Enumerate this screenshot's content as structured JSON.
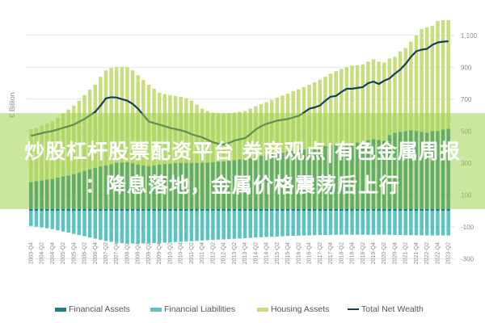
{
  "banner": {
    "line1": "炒股杠杆股票配资平台 券商观点|有色金属周报",
    "line2": "：降息落地，金属价格震荡后上行"
  },
  "chart_data": {
    "type": "bar",
    "stacked": true,
    "ylabel": "€ Billion",
    "ylim": [
      -300,
      1200
    ],
    "yticks": [
      1100,
      900,
      700,
      500,
      300,
      100,
      -100,
      -300
    ],
    "ytick_labels": [
      "1,100",
      "900",
      "700",
      "500",
      "300",
      "100",
      "-100",
      "-300"
    ],
    "y_axis_position": "right",
    "grid": true,
    "legend_position": "bottom",
    "colors": {
      "financial_assets": "#1b7e8f",
      "financial_liabilities": "#5cc3c2",
      "housing_assets": "#c8dd7d",
      "total_net_wealth": "#133f5e"
    },
    "x_labels": [
      "2003-Q4",
      "2004-Q2",
      "2004-Q4",
      "2005-Q2",
      "2005-Q4",
      "2006-Q2",
      "2006-Q4",
      "2007-Q2",
      "2007-Q4",
      "2008-Q2",
      "2008-Q4",
      "2009-Q2",
      "2009-Q4",
      "2010-Q2",
      "2010-Q4",
      "2011-Q2",
      "2011-Q4",
      "2012-Q2",
      "2012-Q4",
      "2013-Q2",
      "2013-Q4",
      "2014-Q2",
      "2014-Q4",
      "2015-Q2",
      "2015-Q4",
      "2016-Q2",
      "2016-Q4",
      "2017-Q2",
      "2017-Q4",
      "2018-Q2",
      "2018-Q4",
      "2019-Q2",
      "2019-Q4",
      "2020-Q2",
      "2020-Q4",
      "2021-Q2",
      "2021-Q4",
      "2022-Q2",
      "2022-Q4",
      "2023-Q2"
    ],
    "x_start": "2003-Q4",
    "x_end": "2023-Q2",
    "frequency": "quarterly",
    "series": [
      {
        "name": "Financial Assets",
        "kind": "bar",
        "values": [
          180,
          185,
          190,
          195,
          200,
          208,
          215,
          222,
          230,
          240,
          250,
          260,
          270,
          278,
          285,
          292,
          300,
          303,
          305,
          298,
          290,
          285,
          280,
          285,
          290,
          293,
          295,
          298,
          300,
          300,
          300,
          300,
          300,
          302,
          305,
          308,
          310,
          314,
          318,
          322,
          325,
          331,
          337,
          344,
          350,
          355,
          360,
          365,
          370,
          375,
          380,
          385,
          390,
          395,
          400,
          405,
          410,
          412,
          415,
          418,
          420,
          428,
          435,
          443,
          450,
          445,
          440,
          475,
          490,
          495,
          500,
          505,
          500,
          495,
          490,
          500,
          500,
          510,
          515
        ]
      },
      {
        "name": "Financial Liabilities",
        "kind": "bar",
        "values": [
          -95,
          -100,
          -105,
          -110,
          -115,
          -122,
          -130,
          -137,
          -145,
          -152,
          -160,
          -168,
          -175,
          -182,
          -190,
          -195,
          -200,
          -203,
          -205,
          -205,
          -205,
          -205,
          -204,
          -203,
          -202,
          -200,
          -198,
          -196,
          -195,
          -193,
          -191,
          -189,
          -187,
          -185,
          -183,
          -181,
          -180,
          -178,
          -176,
          -174,
          -172,
          -170,
          -168,
          -166,
          -165,
          -163,
          -162,
          -160,
          -158,
          -157,
          -156,
          -155,
          -154,
          -153,
          -152,
          -152,
          -151,
          -151,
          -150,
          -150,
          -150,
          -150,
          -150,
          -151,
          -151,
          -150,
          -150,
          -151,
          -152,
          -152,
          -153,
          -153,
          -154,
          -154,
          -155,
          -155,
          -155,
          -155,
          -155
        ]
      },
      {
        "name": "Housing Assets",
        "kind": "bar",
        "values": [
          330,
          335,
          345,
          353,
          360,
          377,
          395,
          413,
          430,
          450,
          475,
          500,
          520,
          562,
          595,
          603,
          600,
          599,
          595,
          582,
          560,
          535,
          510,
          480,
          450,
          439,
          430,
          422,
          415,
          405,
          390,
          365,
          340,
          323,
          310,
          304,
          300,
          298,
          297,
          298,
          300,
          309,
          318,
          324,
          330,
          340,
          350,
          357,
          365,
          375,
          382,
          390,
          400,
          410,
          422,
          435,
          450,
          463,
          475,
          482,
          490,
          484,
          483,
          492,
          500,
          490,
          490,
          480,
          475,
          505,
          520,
          555,
          600,
          645,
          660,
          660,
          690,
          685,
          680
        ]
      },
      {
        "name": "Total Net Wealth",
        "kind": "line",
        "values": [
          470,
          478,
          486,
          494,
          500,
          510,
          520,
          530,
          540,
          558,
          575,
          598,
          620,
          660,
          705,
          712,
          710,
          700,
          690,
          670,
          640,
          600,
          560,
          550,
          540,
          530,
          520,
          512,
          505,
          495,
          480,
          470,
          460,
          445,
          430,
          420,
          415,
          425,
          440,
          448,
          455,
          480,
          510,
          530,
          545,
          555,
          565,
          570,
          575,
          585,
          595,
          615,
          640,
          648,
          660,
          690,
          715,
          720,
          745,
          765,
          765,
          770,
          775,
          800,
          810,
          795,
          815,
          830,
          860,
          885,
          920,
          965,
          1000,
          1010,
          1015,
          1040,
          1055,
          1060,
          1063
        ]
      }
    ]
  }
}
